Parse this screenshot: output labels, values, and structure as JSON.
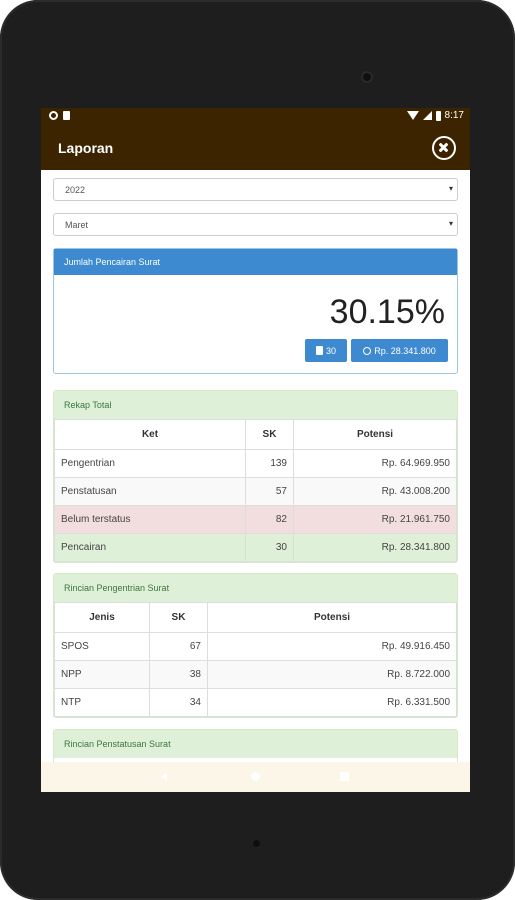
{
  "status_bar": {
    "time": "8:17"
  },
  "toolbar": {
    "title": "Laporan"
  },
  "filters": {
    "year": "2022",
    "month": "Maret"
  },
  "summary": {
    "header": "Jumlah Pencairan Surat",
    "percentage": "30.15%",
    "count_label": "30",
    "amount_label": "Rp. 28.341.800"
  },
  "rekap": {
    "header": "Rekap Total",
    "columns": [
      "Ket",
      "SK",
      "Potensi"
    ],
    "rows": [
      {
        "ket": "Pengentrian",
        "sk": "139",
        "potensi": "Rp. 64.969.950"
      },
      {
        "ket": "Penstatusan",
        "sk": "57",
        "potensi": "Rp. 43.008.200"
      },
      {
        "ket": "Belum terstatus",
        "sk": "82",
        "potensi": "Rp. 21.961.750"
      },
      {
        "ket": "Pencairan",
        "sk": "30",
        "potensi": "Rp. 28.341.800"
      }
    ]
  },
  "rincian_pengentrian": {
    "header": "Rincian Pengentrian Surat",
    "columns": [
      "Jenis",
      "SK",
      "Potensi"
    ],
    "rows": [
      {
        "jenis": "SPOS",
        "sk": "67",
        "potensi": "Rp. 49.916.450"
      },
      {
        "jenis": "NPP",
        "sk": "38",
        "potensi": "Rp. 8.722.000"
      },
      {
        "jenis": "NTP",
        "sk": "34",
        "potensi": "Rp. 6.331.500"
      }
    ]
  },
  "rincian_penstatusan": {
    "header": "Rincian Penstatusan Surat"
  }
}
